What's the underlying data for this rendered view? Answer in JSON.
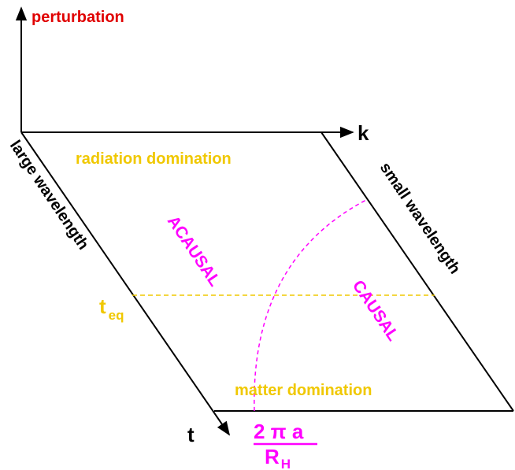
{
  "axes": {
    "vertical_label": "perturbation",
    "horizontal_label": "k",
    "depth_label": "t"
  },
  "edges": {
    "left_label": "large wavelength",
    "right_label": "small wavelength"
  },
  "regions": {
    "top_label": "radiation domination",
    "bottom_label": "matter domination",
    "left_label": "ACAUSAL",
    "right_label": "CAUSAL"
  },
  "equality": {
    "symbol": "t",
    "subscript": "eq"
  },
  "horizon_scale": {
    "numerator": "2 π a",
    "denominator_symbol": "R",
    "denominator_subscript": "H"
  },
  "colors": {
    "axis_label": "#e00000",
    "line": "#000000",
    "era": "#f0c800",
    "causality": "#ff00ff"
  }
}
